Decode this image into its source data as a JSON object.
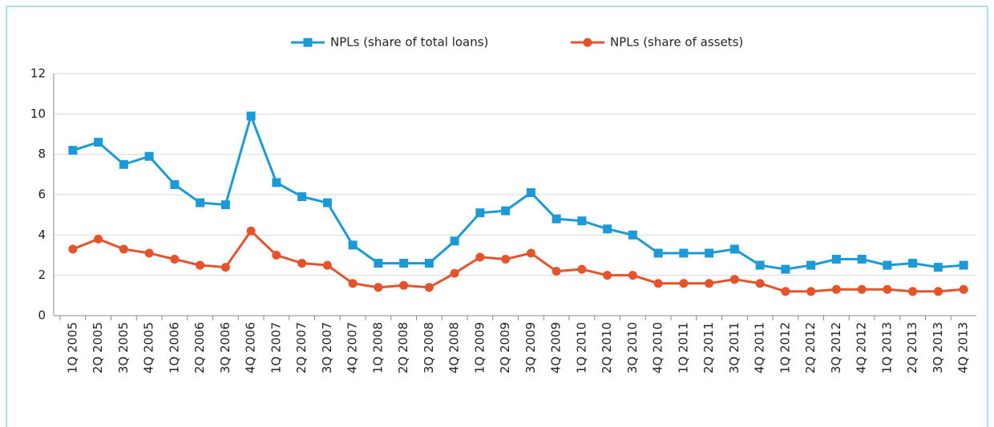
{
  "chart_data": {
    "type": "line",
    "categories": [
      "1Q 2005",
      "2Q 2005",
      "3Q 2005",
      "4Q 2005",
      "1Q 2006",
      "2Q 2006",
      "3Q 2006",
      "4Q 2006",
      "1Q 2007",
      "2Q 2007",
      "3Q 2007",
      "4Q 2007",
      "1Q 2008",
      "2Q 2008",
      "3Q 2008",
      "4Q 2008",
      "1Q 2009",
      "2Q 2009",
      "3Q 2009",
      "4Q 2009",
      "1Q 2010",
      "2Q 2010",
      "3Q 2010",
      "4Q 2010",
      "1Q 2011",
      "2Q 2011",
      "3Q 2011",
      "4Q 2011",
      "1Q 2012",
      "2Q 2012",
      "3Q 2012",
      "4Q 2012",
      "1Q 2013",
      "2Q 2013",
      "3Q 2013",
      "4Q 2013"
    ],
    "series": [
      {
        "name": "NPLs (share of total loans)",
        "color": "#1b9ad6",
        "marker": "square",
        "values": [
          8.2,
          8.6,
          7.5,
          7.9,
          6.5,
          5.6,
          5.5,
          9.9,
          6.6,
          5.9,
          5.6,
          3.5,
          2.6,
          2.6,
          2.6,
          3.7,
          5.1,
          5.2,
          6.1,
          4.8,
          4.7,
          4.3,
          4.0,
          3.1,
          3.1,
          3.1,
          3.3,
          2.5,
          2.3,
          2.5,
          2.8,
          2.8,
          2.5,
          2.6,
          2.4,
          2.5
        ]
      },
      {
        "name": "NPLs (share of assets)",
        "color": "#e5532b",
        "marker": "circle",
        "values": [
          3.3,
          3.8,
          3.3,
          3.1,
          2.8,
          2.5,
          2.4,
          4.2,
          3.0,
          2.6,
          2.5,
          1.6,
          1.4,
          1.5,
          1.4,
          2.1,
          2.9,
          2.8,
          3.1,
          2.2,
          2.3,
          2.0,
          2.0,
          1.6,
          1.6,
          1.6,
          1.8,
          1.6,
          1.2,
          1.2,
          1.3,
          1.3,
          1.3,
          1.2,
          1.2,
          1.3
        ]
      }
    ],
    "ylim": [
      0,
      12
    ],
    "yticks": [
      0,
      2,
      4,
      6,
      8,
      10,
      12
    ],
    "grid": true,
    "legend": "top"
  }
}
